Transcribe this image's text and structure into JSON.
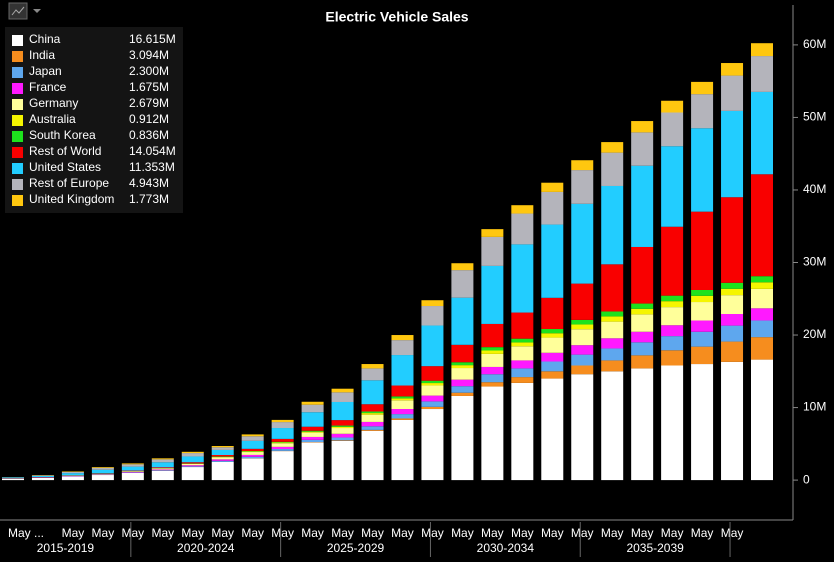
{
  "chart_data": {
    "type": "stacked_bar",
    "title": "Electric Vehicle Sales",
    "categories": [
      "May ...",
      null,
      "May",
      "May",
      "May",
      "May",
      "May",
      "May",
      "May",
      "May",
      "May",
      "May",
      "May",
      "May",
      "May",
      "May",
      "May",
      "May",
      "May",
      "May",
      "May",
      "May",
      "May",
      "May",
      "May",
      null
    ],
    "x_groups": [
      "2015-2019",
      "2020-2024",
      "2025-2029",
      "2030-2034",
      "2035-2039"
    ],
    "ylim": [
      -5.5,
      65.5
    ],
    "yticks": [
      {
        "value": 0,
        "label": "0"
      },
      {
        "value": 10,
        "label": "10M"
      },
      {
        "value": 20,
        "label": "20M"
      },
      {
        "value": 30,
        "label": "30M"
      },
      {
        "value": 40,
        "label": "40M"
      },
      {
        "value": 50,
        "label": "50M"
      },
      {
        "value": 60,
        "label": "60M"
      }
    ],
    "legend": "top-left",
    "series": [
      {
        "name": "China",
        "color": "#ffffff",
        "legend_value": "16.615M",
        "values": [
          0.2,
          0.3,
          0.5,
          0.7,
          1.0,
          1.3,
          1.8,
          2.5,
          3.0,
          4.0,
          5.2,
          5.4,
          6.8,
          8.3,
          9.8,
          11.6,
          12.9,
          13.4,
          14.0,
          14.6,
          15.0,
          15.4,
          15.8,
          16.0,
          16.3,
          16.615
        ]
      },
      {
        "name": "India",
        "color": "#f68d1e",
        "legend_value": "3.094M",
        "values": [
          0,
          0,
          0,
          0,
          0,
          0,
          0,
          0.01,
          0.02,
          0.03,
          0.05,
          0.08,
          0.12,
          0.2,
          0.3,
          0.45,
          0.6,
          0.8,
          1.0,
          1.2,
          1.5,
          1.8,
          2.1,
          2.4,
          2.8,
          3.094
        ]
      },
      {
        "name": "Japan",
        "color": "#5ea7ee",
        "legend_value": "2.300M",
        "values": [
          0.02,
          0.03,
          0.03,
          0.04,
          0.05,
          0.07,
          0.1,
          0.15,
          0.2,
          0.25,
          0.3,
          0.4,
          0.5,
          0.6,
          0.75,
          0.9,
          1.1,
          1.2,
          1.35,
          1.5,
          1.65,
          1.8,
          1.95,
          2.05,
          2.2,
          2.3
        ]
      },
      {
        "name": "France",
        "color": "#ff19ff",
        "legend_value": "1.675M",
        "values": [
          0.02,
          0.03,
          0.04,
          0.05,
          0.07,
          0.1,
          0.15,
          0.2,
          0.25,
          0.3,
          0.4,
          0.5,
          0.6,
          0.7,
          0.8,
          0.9,
          1.0,
          1.1,
          1.2,
          1.3,
          1.4,
          1.45,
          1.5,
          1.55,
          1.6,
          1.675
        ]
      },
      {
        "name": "Germany",
        "color": "#ffff9a",
        "legend_value": "2.679M",
        "values": [
          0.02,
          0.03,
          0.05,
          0.07,
          0.1,
          0.15,
          0.2,
          0.3,
          0.4,
          0.5,
          0.6,
          0.8,
          1.0,
          1.2,
          1.4,
          1.6,
          1.8,
          1.95,
          2.1,
          2.2,
          2.3,
          2.4,
          2.5,
          2.55,
          2.6,
          2.679
        ]
      },
      {
        "name": "Australia",
        "color": "#f5f500",
        "legend_value": "0.912M",
        "values": [
          0,
          0,
          0,
          0.01,
          0.01,
          0.02,
          0.03,
          0.05,
          0.07,
          0.1,
          0.13,
          0.17,
          0.22,
          0.27,
          0.33,
          0.4,
          0.47,
          0.53,
          0.6,
          0.66,
          0.72,
          0.77,
          0.82,
          0.86,
          0.88,
          0.912
        ]
      },
      {
        "name": "South Korea",
        "color": "#1de21d",
        "legend_value": "0.836M",
        "values": [
          0,
          0,
          0,
          0.01,
          0.01,
          0.02,
          0.03,
          0.05,
          0.07,
          0.1,
          0.13,
          0.17,
          0.22,
          0.27,
          0.33,
          0.4,
          0.46,
          0.52,
          0.58,
          0.63,
          0.68,
          0.72,
          0.76,
          0.8,
          0.82,
          0.836
        ]
      },
      {
        "name": "Rest of World",
        "color": "#f90000",
        "legend_value": "14.054M",
        "values": [
          0.02,
          0.03,
          0.04,
          0.05,
          0.07,
          0.1,
          0.15,
          0.2,
          0.3,
          0.4,
          0.55,
          0.75,
          1.0,
          1.5,
          2.0,
          2.4,
          3.2,
          3.6,
          4.3,
          5.0,
          6.5,
          7.8,
          9.5,
          10.8,
          11.8,
          14.054
        ]
      },
      {
        "name": "United States",
        "color": "#22cdff",
        "legend_value": "11.353M",
        "values": [
          0.08,
          0.16,
          0.3,
          0.5,
          0.55,
          0.7,
          0.8,
          0.7,
          1.1,
          1.5,
          2.0,
          2.5,
          3.3,
          4.2,
          5.6,
          6.5,
          8.0,
          9.4,
          10.1,
          11.0,
          10.8,
          11.2,
          11.1,
          11.5,
          11.9,
          11.353
        ]
      },
      {
        "name": "Rest of Europe",
        "color": "#b4b4bb",
        "legend_value": "4.943M",
        "values": [
          0.03,
          0.08,
          0.17,
          0.27,
          0.32,
          0.4,
          0.47,
          0.37,
          0.64,
          0.82,
          1.04,
          1.33,
          1.64,
          2.06,
          2.69,
          3.8,
          4.0,
          4.25,
          4.5,
          4.65,
          4.6,
          4.6,
          4.65,
          4.7,
          4.87,
          4.943
        ]
      },
      {
        "name": "United Kingdom",
        "color": "#ffc70f",
        "legend_value": "1.773M",
        "values": [
          0.01,
          0.04,
          0.07,
          0.1,
          0.12,
          0.14,
          0.17,
          0.17,
          0.25,
          0.3,
          0.4,
          0.5,
          0.6,
          0.7,
          0.8,
          0.95,
          1.07,
          1.15,
          1.27,
          1.36,
          1.45,
          1.56,
          1.62,
          1.69,
          1.73,
          1.773
        ]
      }
    ]
  }
}
